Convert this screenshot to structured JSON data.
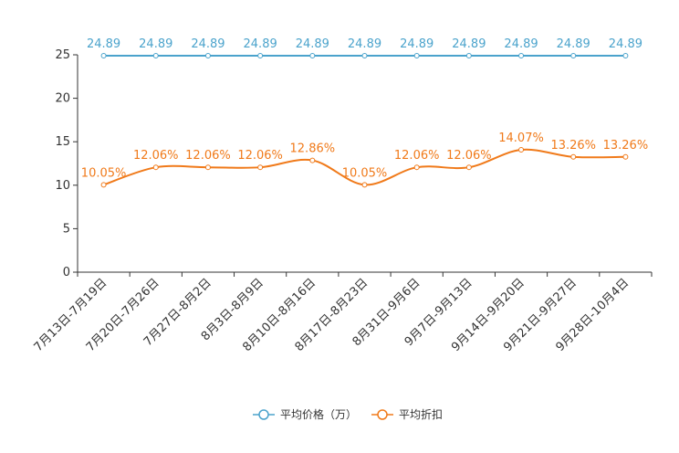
{
  "chart_data": {
    "type": "line",
    "categories": [
      "7月13日-7月19日",
      "7月20日-7月26日",
      "7月27日-8月2日",
      "8月3日-8月9日",
      "8月10日-8月16日",
      "8月17日-8月23日",
      "8月31日-9月6日",
      "9月7日-9月13日",
      "9月14日-9月20日",
      "9月21日-9月27日",
      "9月28日-10月4日"
    ],
    "ylim": [
      0,
      25
    ],
    "yticks": [
      0,
      5,
      10,
      15,
      20,
      25
    ],
    "smooth": true,
    "legend_position": "bottom-center",
    "series": [
      {
        "name": "平均价格（万）",
        "color": "#4ba3cc",
        "values": [
          24.89,
          24.89,
          24.89,
          24.89,
          24.89,
          24.89,
          24.89,
          24.89,
          24.89,
          24.89,
          24.89
        ],
        "labels": [
          "24.89",
          "24.89",
          "24.89",
          "24.89",
          "24.89",
          "24.89",
          "24.89",
          "24.89",
          "24.89",
          "24.89",
          "24.89"
        ]
      },
      {
        "name": "平均折扣",
        "color": "#f07a1a",
        "values": [
          10.05,
          12.06,
          12.06,
          12.06,
          12.86,
          10.05,
          12.06,
          12.06,
          14.07,
          13.26,
          13.26
        ],
        "labels": [
          "10.05%",
          "12.06%",
          "12.06%",
          "12.06%",
          "12.86%",
          "10.05%",
          "12.06%",
          "12.06%",
          "14.07%",
          "13.26%",
          "13.26%"
        ]
      }
    ]
  }
}
